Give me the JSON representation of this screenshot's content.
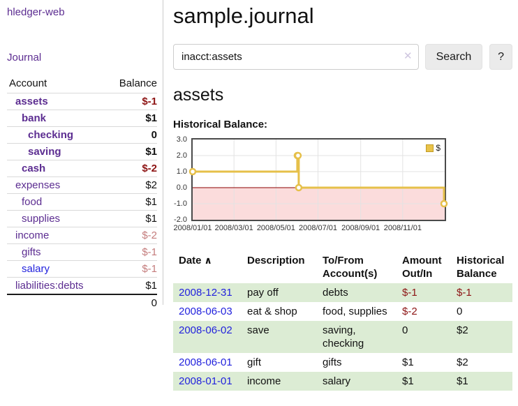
{
  "sidebar": {
    "app_title": "hledger-web",
    "nav": {
      "journal": "Journal"
    },
    "accounts_table": {
      "account_header": "Account",
      "balance_header": "Balance",
      "rows": [
        {
          "account": "assets",
          "balance": "$-1",
          "level": 1,
          "bold": true,
          "account_color": "purple",
          "balance_style": "negative-strong"
        },
        {
          "account": "bank",
          "balance": "$1",
          "level": 2,
          "bold": true,
          "account_color": "purple",
          "balance_style": "normal"
        },
        {
          "account": "checking",
          "balance": "0",
          "level": 3,
          "bold": true,
          "account_color": "purple",
          "balance_style": "normal"
        },
        {
          "account": "saving",
          "balance": "$1",
          "level": 3,
          "bold": true,
          "account_color": "purple",
          "balance_style": "normal"
        },
        {
          "account": "cash",
          "balance": "$-2",
          "level": 2,
          "bold": true,
          "account_color": "purple",
          "balance_style": "negative-strong"
        },
        {
          "account": "expenses",
          "balance": "$2",
          "level": 1,
          "bold": false,
          "account_color": "purple",
          "balance_style": "normal"
        },
        {
          "account": "food",
          "balance": "$1",
          "level": 2,
          "bold": false,
          "account_color": "purple",
          "balance_style": "normal"
        },
        {
          "account": "supplies",
          "balance": "$1",
          "level": 2,
          "bold": false,
          "account_color": "purple",
          "balance_style": "normal"
        },
        {
          "account": "income",
          "balance": "$-2",
          "level": 1,
          "bold": false,
          "account_color": "purple",
          "balance_style": "negative-soft"
        },
        {
          "account": "gifts",
          "balance": "$-1",
          "level": 2,
          "bold": false,
          "account_color": "purple",
          "balance_style": "negative-soft"
        },
        {
          "account": "salary",
          "balance": "$-1",
          "level": 2,
          "bold": false,
          "account_color": "blue",
          "balance_style": "negative-soft"
        },
        {
          "account": "liabilities:debts",
          "balance": "$1",
          "level": 1,
          "bold": false,
          "account_color": "purple",
          "balance_style": "normal"
        }
      ],
      "total": "0"
    }
  },
  "main": {
    "title": "sample.journal",
    "search": {
      "value": "inacct:assets",
      "clear_icon": "✕",
      "search_button": "Search",
      "help_button": "?"
    },
    "account_heading": "assets",
    "register": {
      "sort_icon": "∧",
      "headers": {
        "date": "Date",
        "description": "Description",
        "accounts": "To/From Account(s)",
        "amount": "Amount Out/In",
        "balance": "Historical Balance"
      },
      "rows": [
        {
          "date": "2008-12-31",
          "description": "pay off",
          "accounts": "debts",
          "amount": "$-1",
          "balance": "$-1",
          "highlighted": true
        },
        {
          "date": "2008-06-03",
          "description": "eat & shop",
          "accounts": "food, supplies",
          "amount": "$-2",
          "balance": "0",
          "highlighted": false
        },
        {
          "date": "2008-06-02",
          "description": "save",
          "accounts": "saving, checking",
          "amount": "0",
          "balance": "$2",
          "highlighted": true
        },
        {
          "date": "2008-06-01",
          "description": "gift",
          "accounts": "gifts",
          "amount": "$1",
          "balance": "$2",
          "highlighted": false
        },
        {
          "date": "2008-01-01",
          "description": "income",
          "accounts": "salary",
          "amount": "$1",
          "balance": "$1",
          "highlighted": true
        }
      ]
    }
  },
  "chart_data": {
    "type": "line",
    "step": true,
    "title": "Historical Balance:",
    "legend_label": "$",
    "series": [
      {
        "name": "$",
        "points": [
          [
            "2008-01-01",
            1
          ],
          [
            "2008-06-01",
            2
          ],
          [
            "2008-06-02",
            2
          ],
          [
            "2008-06-03",
            0
          ],
          [
            "2008-12-31",
            -1
          ]
        ]
      }
    ],
    "xlim": [
      "2008-01-01",
      "2009-01-01"
    ],
    "ylim": [
      -2,
      3
    ],
    "yticks": [
      {
        "label": "3.0",
        "value": 3
      },
      {
        "label": "2.0",
        "value": 2
      },
      {
        "label": "1.0",
        "value": 1
      },
      {
        "label": "0.0",
        "value": 0
      },
      {
        "label": "-1.0",
        "value": -1
      },
      {
        "label": "-2.0",
        "value": -2
      }
    ],
    "xticks": [
      {
        "label": "2008/01/01",
        "date": "2008-01-01"
      },
      {
        "label": "2008/03/01",
        "date": "2008-03-01"
      },
      {
        "label": "2008/05/01",
        "date": "2008-05-01"
      },
      {
        "label": "2008/07/01",
        "date": "2008-07-01"
      },
      {
        "label": "2008/09/01",
        "date": "2008-09-01"
      },
      {
        "label": "2008/11/01",
        "date": "2008-11-01"
      }
    ],
    "colors": {
      "line": "#e6c04a",
      "point_fill": "#ffffff",
      "negative_region": "#fbdcdc",
      "zero_line": "#8b0000",
      "grid": "#e3e3e3",
      "border": "#4a4a4a"
    }
  }
}
